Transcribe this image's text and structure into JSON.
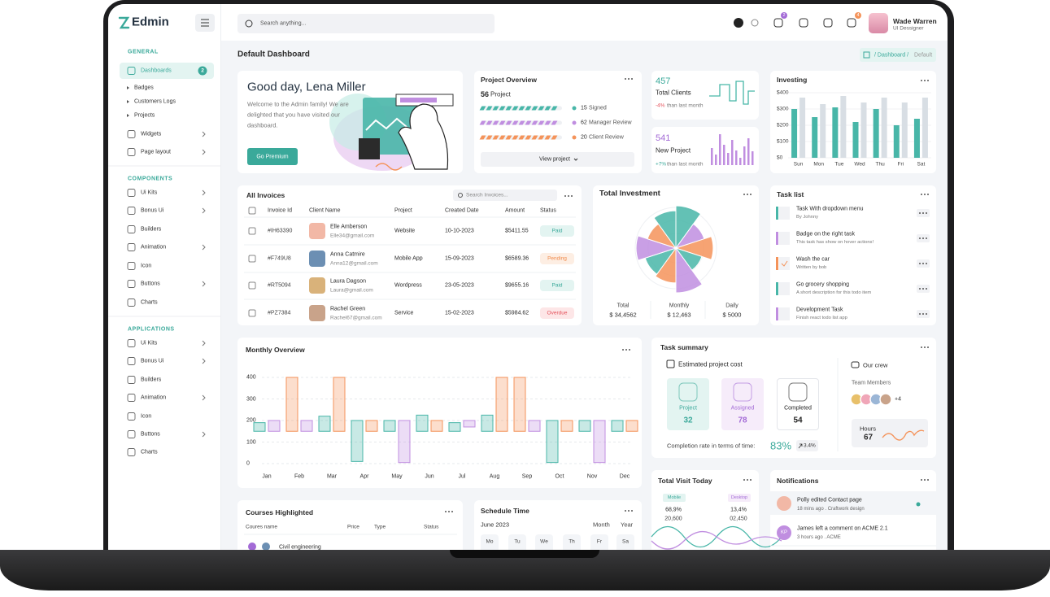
{
  "sidebar": {
    "brand": "Edmin",
    "sections": [
      {
        "title": "GENERAL",
        "items": [
          {
            "label": "Dashboards",
            "badge": "2"
          },
          {
            "label": "Badges"
          },
          {
            "label": "Customers Logs"
          },
          {
            "label": "Projects"
          },
          {
            "label": "Widgets"
          },
          {
            "label": "Page layout"
          }
        ]
      },
      {
        "title": "COMPONENTS",
        "items": [
          {
            "label": "Ui Kits"
          },
          {
            "label": "Bonus Ui"
          },
          {
            "label": "Builders"
          },
          {
            "label": "Animation"
          },
          {
            "label": "Icon"
          },
          {
            "label": "Buttons"
          },
          {
            "label": "Charts"
          }
        ]
      },
      {
        "title": "APPLICATIONS",
        "items": [
          {
            "label": "Ui Kits"
          },
          {
            "label": "Bonus Ui"
          },
          {
            "label": "Builders"
          },
          {
            "label": "Animation"
          },
          {
            "label": "Icon"
          },
          {
            "label": "Buttons"
          },
          {
            "label": "Charts"
          }
        ]
      }
    ]
  },
  "header": {
    "search": "Search anything...",
    "bell_badge": "2",
    "mail_badge": "4",
    "user": {
      "name": "Wade Warren",
      "role": "UI Dessigner"
    }
  },
  "page": {
    "title": "Default Dashboard",
    "crumb": "/ Dashboard /",
    "current": "Default"
  },
  "welcome": {
    "title": "Good day, Lena Miller",
    "text": "Welcome to the Admin family! We are delighted that you have visited our dashboard.",
    "button": "Go Premium"
  },
  "project": {
    "title": "Project Overview",
    "count": "56",
    "unit": "Project",
    "rows": [
      {
        "value": "15",
        "label": "Signed"
      },
      {
        "value": "62",
        "label": "Manager Review"
      },
      {
        "value": "20",
        "label": "Client Review"
      }
    ],
    "button": "View project"
  },
  "clients": {
    "value": "457",
    "label": "Total Clients",
    "change": "-4%",
    "note": "than last month"
  },
  "new_project": {
    "value": "541",
    "label": "New Project",
    "change": "+7%",
    "note": "than last month"
  },
  "investing": {
    "title": "Investing",
    "chart": {
      "type": "bar",
      "categories": [
        "Sun",
        "Mon",
        "Tue",
        "Wed",
        "Thu",
        "Fri",
        "Sat"
      ],
      "series": [
        {
          "color": "#48b6a8",
          "values": [
            300,
            250,
            310,
            220,
            300,
            200,
            240
          ]
        },
        {
          "color": "#d8dee4",
          "values": [
            370,
            330,
            380,
            340,
            370,
            340,
            370
          ]
        }
      ],
      "ylim": [
        0,
        400
      ],
      "yticks": [
        {
          "value": 0,
          "label": "$0"
        },
        {
          "value": 100,
          "label": "$100"
        },
        {
          "value": 200,
          "label": "$200"
        },
        {
          "value": 300,
          "label": "$300"
        },
        {
          "value": 400,
          "label": "$400"
        }
      ]
    }
  },
  "invoices": {
    "title": "All Invoices",
    "search": "Search Invoices...",
    "columns": [
      "Invoice Id",
      "Client Name",
      "Project",
      "Created Date",
      "Amount",
      "Status"
    ],
    "rows": [
      {
        "id": "#IH63390",
        "name": "Elle Amberson",
        "email": "Elle34@gmail.com",
        "project": "Website",
        "date": "10-10-2023",
        "amount": "$5411.55",
        "status": "Paid"
      },
      {
        "id": "#F749U8",
        "name": "Anna Catmire",
        "email": "Anna12@gmail.com",
        "project": "Mobile App",
        "date": "15-09-2023",
        "amount": "$6589.36",
        "status": "Pending"
      },
      {
        "id": "#RT5094",
        "name": "Laura Dagson",
        "email": "Laura@gmail.com",
        "project": "Wordpress",
        "date": "23-05-2023",
        "amount": "$9655.16",
        "status": "Paid"
      },
      {
        "id": "#PZ7384",
        "name": "Rachel Green",
        "email": "Rachel67@gmail.com",
        "project": "Service",
        "date": "15-02-2023",
        "amount": "$5984.62",
        "status": "Overdue"
      }
    ]
  },
  "investment": {
    "title": "Total Investment",
    "chart": {
      "type": "polar",
      "values": [
        85,
        60,
        75,
        55,
        90,
        70,
        65,
        80,
        60,
        75
      ],
      "colors": [
        "#48b6a8",
        "#c08ee0",
        "#f4935a",
        "#48b6a8",
        "#c08ee0",
        "#f4935a",
        "#48b6a8",
        "#c08ee0",
        "#f4935a",
        "#48b6a8"
      ]
    },
    "stats": [
      {
        "label": "Total",
        "value": "$ 34,4562"
      },
      {
        "label": "Monthly",
        "value": "$ 12,463"
      },
      {
        "label": "Daily",
        "value": "$ 5000"
      }
    ]
  },
  "tasks": {
    "title": "Task list",
    "items": [
      {
        "name": "Task With dropdown menu",
        "desc": "By Johnny"
      },
      {
        "name": "Badge on the right task",
        "desc": "This task has show on hover actions!"
      },
      {
        "name": "Wash the car",
        "desc": "Written by bob"
      },
      {
        "name": "Go grocery shopping",
        "desc": "A short description for this todo item"
      },
      {
        "name": "Development Task",
        "desc": "Finish react todo list app"
      }
    ]
  },
  "monthly": {
    "title": "Monthly  Overview",
    "chart": {
      "type": "floating-bar",
      "categories": [
        "Jan",
        "Feb",
        "Mar",
        "Apr",
        "May",
        "Jun",
        "Jul",
        "Aug",
        "Sep",
        "Oct",
        "Nov",
        "Dec"
      ],
      "series": [
        {
          "color": "#48b6a8",
          "low": [
            150,
            null,
            150,
            10,
            150,
            150,
            150,
            150,
            null,
            5,
            150,
            150
          ],
          "high": [
            190,
            null,
            220,
            200,
            200,
            225,
            190,
            225,
            null,
            200,
            200,
            200
          ]
        },
        {
          "color": "#f4935a",
          "low": [
            null,
            150,
            150,
            150,
            null,
            150,
            null,
            150,
            150,
            150,
            null,
            150
          ],
          "high": [
            null,
            400,
            400,
            200,
            null,
            200,
            null,
            400,
            400,
            200,
            null,
            200
          ]
        },
        {
          "color": "#c08ee0",
          "low": [
            150,
            150,
            null,
            null,
            5,
            null,
            170,
            null,
            150,
            null,
            5,
            null
          ],
          "high": [
            200,
            200,
            null,
            null,
            200,
            null,
            200,
            null,
            200,
            null,
            200,
            null
          ]
        }
      ],
      "ylim": [
        0,
        400
      ],
      "yticks": [
        0,
        100,
        200,
        300,
        400
      ]
    }
  },
  "summary": {
    "title": "Task summary",
    "cost": "Estimated project cost",
    "tiles": [
      {
        "label": "Project",
        "value": "32"
      },
      {
        "label": "Assigned",
        "value": "78"
      },
      {
        "label": "Completed",
        "value": "54"
      }
    ],
    "rate_label": "Completion rate in terms of time:",
    "rate": "83%",
    "change": "3.4%",
    "crew": "Our crew",
    "members": "Team Members",
    "more": "+4",
    "hours_label": "Hours",
    "hours": "67"
  },
  "courses": {
    "title": "Courses Highlighted",
    "columns": [
      "Coures name",
      "Price",
      "Type",
      "Status"
    ],
    "row": "Civil engineering"
  },
  "schedule": {
    "title": "Schedule Time",
    "month": "June 2023",
    "tabs": [
      "Month",
      "Year"
    ],
    "days": [
      "Mo",
      "Tu",
      "We",
      "Th",
      "Fr",
      "Sa"
    ]
  },
  "visit": {
    "title": "Total Visit Today",
    "items": [
      {
        "label": "Mobile",
        "pct": "68,9%",
        "count": "20,600"
      },
      {
        "label": "Desktop",
        "pct": "13,4%",
        "count": "02,450"
      }
    ]
  },
  "notifications": {
    "title": "Notifications",
    "items": [
      {
        "title": "Polly edited Contact page",
        "time": "18 mins ago . Craftwork design"
      },
      {
        "initials": "KP",
        "title": "James left a comment on ACME 2.1",
        "time": "3 hours ago . ACME"
      }
    ]
  }
}
